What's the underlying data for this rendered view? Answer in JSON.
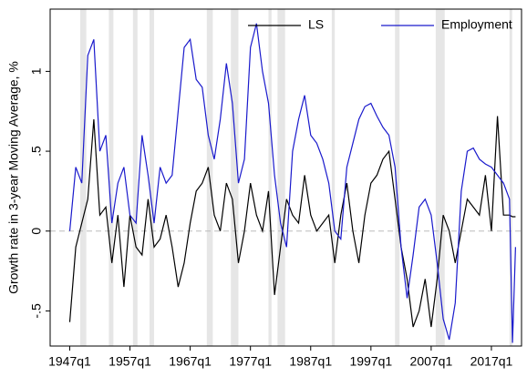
{
  "chart_data": {
    "type": "line",
    "y_label": "Growth rate in 3-year Moving Average, %",
    "x": [
      "1947q1",
      "1948q1",
      "1949q1",
      "1950q1",
      "1951q1",
      "1952q1",
      "1953q1",
      "1954q1",
      "1955q1",
      "1956q1",
      "1957q1",
      "1958q1",
      "1959q1",
      "1960q1",
      "1961q1",
      "1962q1",
      "1963q1",
      "1964q1",
      "1965q1",
      "1966q1",
      "1967q1",
      "1968q1",
      "1969q1",
      "1970q1",
      "1971q1",
      "1972q1",
      "1973q1",
      "1974q1",
      "1975q1",
      "1976q1",
      "1977q1",
      "1978q1",
      "1979q1",
      "1980q1",
      "1981q1",
      "1982q1",
      "1983q1",
      "1984q1",
      "1985q1",
      "1986q1",
      "1987q1",
      "1988q1",
      "1989q1",
      "1990q1",
      "1991q1",
      "1992q1",
      "1993q1",
      "1994q1",
      "1995q1",
      "1996q1",
      "1997q1",
      "1998q1",
      "1999q1",
      "2000q1",
      "2001q1",
      "2002q1",
      "2003q1",
      "2004q1",
      "2005q1",
      "2006q1",
      "2007q1",
      "2008q1",
      "2009q1",
      "2010q1",
      "2011q1",
      "2012q1",
      "2013q1",
      "2014q1",
      "2015q1",
      "2016q1",
      "2017q1",
      "2018q1",
      "2019q1",
      "2020q1",
      "2020q3",
      "2021q1"
    ],
    "series": [
      {
        "name": "LS",
        "color": "#000000",
        "values": [
          -0.57,
          -0.1,
          0.05,
          0.2,
          0.7,
          0.1,
          0.15,
          -0.2,
          0.1,
          -0.35,
          0.1,
          -0.1,
          -0.15,
          0.2,
          -0.1,
          -0.05,
          0.1,
          -0.1,
          -0.35,
          -0.2,
          0.05,
          0.25,
          0.3,
          0.4,
          0.1,
          0.0,
          0.3,
          0.2,
          -0.2,
          0.0,
          0.3,
          0.1,
          0.0,
          0.25,
          -0.4,
          -0.1,
          0.2,
          0.1,
          0.05,
          0.35,
          0.1,
          0.0,
          0.05,
          0.1,
          -0.2,
          0.1,
          0.3,
          0.0,
          -0.2,
          0.1,
          0.3,
          0.35,
          0.45,
          0.5,
          0.2,
          -0.1,
          -0.3,
          -0.6,
          -0.5,
          -0.3,
          -0.6,
          -0.3,
          0.1,
          0.0,
          -0.2,
          0.0,
          0.2,
          0.15,
          0.1,
          0.35,
          0.0,
          0.72,
          0.1,
          0.1,
          0.09,
          0.09
        ]
      },
      {
        "name": "Employment",
        "color": "#1a1acc",
        "values": [
          0.0,
          0.4,
          0.3,
          1.1,
          1.2,
          0.5,
          0.6,
          0.05,
          0.3,
          0.4,
          0.1,
          0.05,
          0.6,
          0.35,
          0.05,
          0.4,
          0.3,
          0.35,
          0.75,
          1.15,
          1.2,
          0.95,
          0.9,
          0.6,
          0.45,
          0.7,
          1.05,
          0.8,
          0.3,
          0.45,
          1.15,
          1.3,
          1.0,
          0.8,
          0.35,
          0.05,
          -0.1,
          0.5,
          0.7,
          0.85,
          0.6,
          0.55,
          0.45,
          0.3,
          0.0,
          -0.05,
          0.4,
          0.55,
          0.7,
          0.78,
          0.8,
          0.72,
          0.65,
          0.6,
          0.4,
          -0.1,
          -0.42,
          -0.15,
          0.15,
          0.2,
          0.1,
          -0.2,
          -0.55,
          -0.68,
          -0.45,
          0.25,
          0.5,
          0.52,
          0.45,
          0.42,
          0.4,
          0.35,
          0.3,
          0.2,
          -0.7,
          -0.1
        ]
      }
    ],
    "shaded_periods": [
      [
        "1948q4",
        "1949q4"
      ],
      [
        "1953q3",
        "1954q2"
      ],
      [
        "1957q3",
        "1958q2"
      ],
      [
        "1960q2",
        "1961q1"
      ],
      [
        "1969q4",
        "1970q4"
      ],
      [
        "1973q4",
        "1975q1"
      ],
      [
        "1980q1",
        "1980q3"
      ],
      [
        "1981q3",
        "1982q4"
      ],
      [
        "1990q3",
        "1991q1"
      ],
      [
        "2001q1",
        "2001q4"
      ],
      [
        "2007q4",
        "2009q2"
      ],
      [
        "2020q1",
        "2020q2"
      ]
    ],
    "hline": 0,
    "xlim": [
      "1943q4",
      "2022q1"
    ],
    "xticks": [
      "1947q1",
      "1957q1",
      "1967q1",
      "1977q1",
      "1987q1",
      "1997q1",
      "2007q1",
      "2017q1"
    ],
    "ylim": [
      -0.72,
      1.39
    ],
    "yticks": [
      {
        "value": -0.5,
        "label": "-.5"
      },
      0,
      {
        "value": 0.5,
        "label": ".5"
      },
      1
    ],
    "legend": "top-right"
  }
}
